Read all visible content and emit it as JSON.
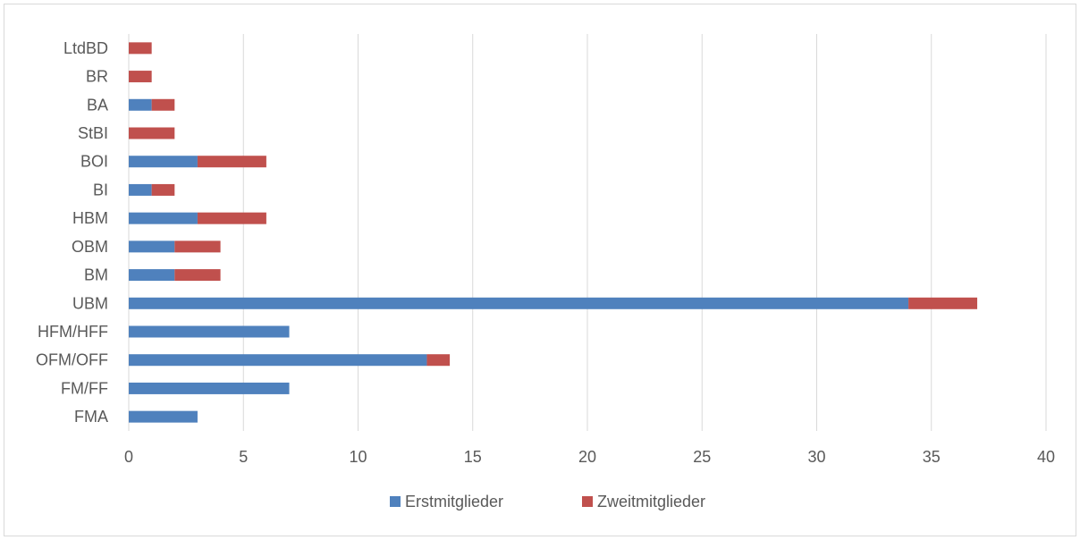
{
  "chart_data": {
    "type": "bar",
    "orientation": "horizontal",
    "stacked": true,
    "categories": [
      "FMA",
      "FM/FF",
      "OFM/OFF",
      "HFM/HFF",
      "UBM",
      "BM",
      "OBM",
      "HBM",
      "BI",
      "BOI",
      "StBI",
      "BA",
      "BR",
      "LtdBD"
    ],
    "series": [
      {
        "name": "Erstmitglieder",
        "color": "#4f81bd",
        "values": [
          3,
          7,
          13,
          7,
          34,
          2,
          2,
          3,
          1,
          3,
          0,
          1,
          0,
          0
        ]
      },
      {
        "name": "Zweitmitglieder",
        "color": "#c0504d",
        "values": [
          0,
          0,
          1,
          0,
          3,
          2,
          2,
          3,
          1,
          3,
          2,
          1,
          1,
          1
        ]
      }
    ],
    "xlim": [
      0,
      40
    ],
    "xticks": [
      0,
      5,
      10,
      15,
      20,
      25,
      30,
      35,
      40
    ],
    "grid": true,
    "legend_position": "bottom",
    "title": "",
    "xlabel": "",
    "ylabel": ""
  }
}
